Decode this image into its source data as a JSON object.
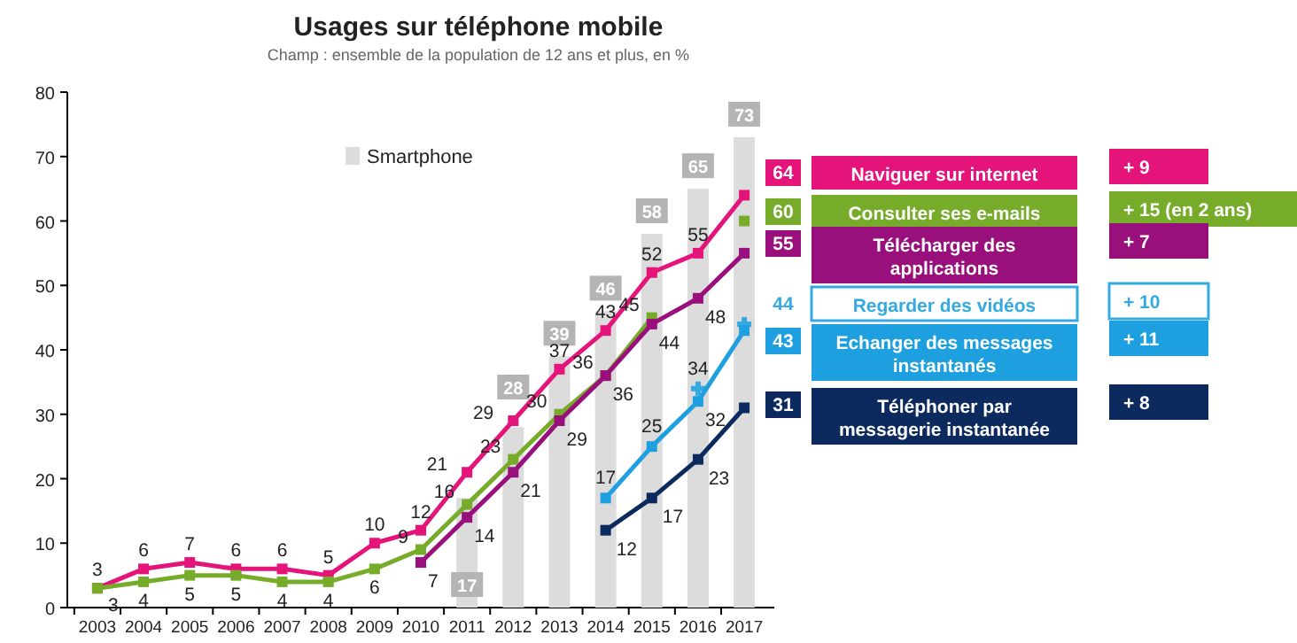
{
  "chart_data": {
    "type": "line",
    "title": "Usages sur téléphone mobile",
    "subtitle": "Champ : ensemble de la population de 12 ans et plus, en %",
    "categories": [
      "2003",
      "2004",
      "2005",
      "2006",
      "2007",
      "2008",
      "2009",
      "2010",
      "2011",
      "2012",
      "2013",
      "2014",
      "2015",
      "2016",
      "2017"
    ],
    "ylim": [
      0,
      80
    ],
    "yticks": [
      0,
      10,
      20,
      30,
      40,
      50,
      60,
      70,
      80
    ],
    "grid": false,
    "legend": "top",
    "marker": "square",
    "data_labels": true,
    "series": [
      {
        "name": "Smartphone",
        "type": "bar",
        "color": "#dcdcdc",
        "values": [
          null,
          null,
          null,
          null,
          null,
          null,
          null,
          null,
          17,
          28,
          39,
          46,
          58,
          65,
          73
        ]
      },
      {
        "name": "Naviguer sur internet",
        "color": "#e5147a",
        "values": [
          3,
          6,
          7,
          6,
          6,
          5,
          10,
          12,
          21,
          29,
          37,
          43,
          52,
          55,
          64
        ]
      },
      {
        "name": "Consulter ses e-mails",
        "color": "#77ac2a",
        "values": [
          3,
          4,
          5,
          5,
          4,
          4,
          6,
          9,
          16,
          23,
          30,
          36,
          45,
          null,
          60
        ]
      },
      {
        "name": "Télécharger des applications",
        "color": "#990f7c",
        "values": [
          null,
          null,
          null,
          null,
          null,
          null,
          null,
          7,
          14,
          21,
          29,
          36,
          44,
          48,
          55
        ]
      },
      {
        "name": "Regarder des vidéos",
        "type": "scatter",
        "marker": "cross",
        "color": "#35a9e1",
        "values": [
          null,
          null,
          null,
          null,
          null,
          null,
          null,
          null,
          null,
          null,
          null,
          null,
          null,
          34,
          44
        ]
      },
      {
        "name": "Echanger des messages instantanés",
        "color": "#1ea0e0",
        "values": [
          null,
          null,
          null,
          null,
          null,
          null,
          null,
          null,
          null,
          null,
          null,
          17,
          25,
          32,
          43
        ]
      },
      {
        "name": "Téléphoner par messagerie instantanée",
        "color": "#0c2a5e",
        "values": [
          null,
          null,
          null,
          null,
          null,
          null,
          null,
          null,
          null,
          null,
          null,
          12,
          17,
          23,
          31
        ]
      }
    ],
    "annotations": [
      "+ 9",
      "+ 15 (en 2 ans)",
      "+ 7",
      "+ 10",
      "+ 11",
      "+ 8"
    ]
  }
}
